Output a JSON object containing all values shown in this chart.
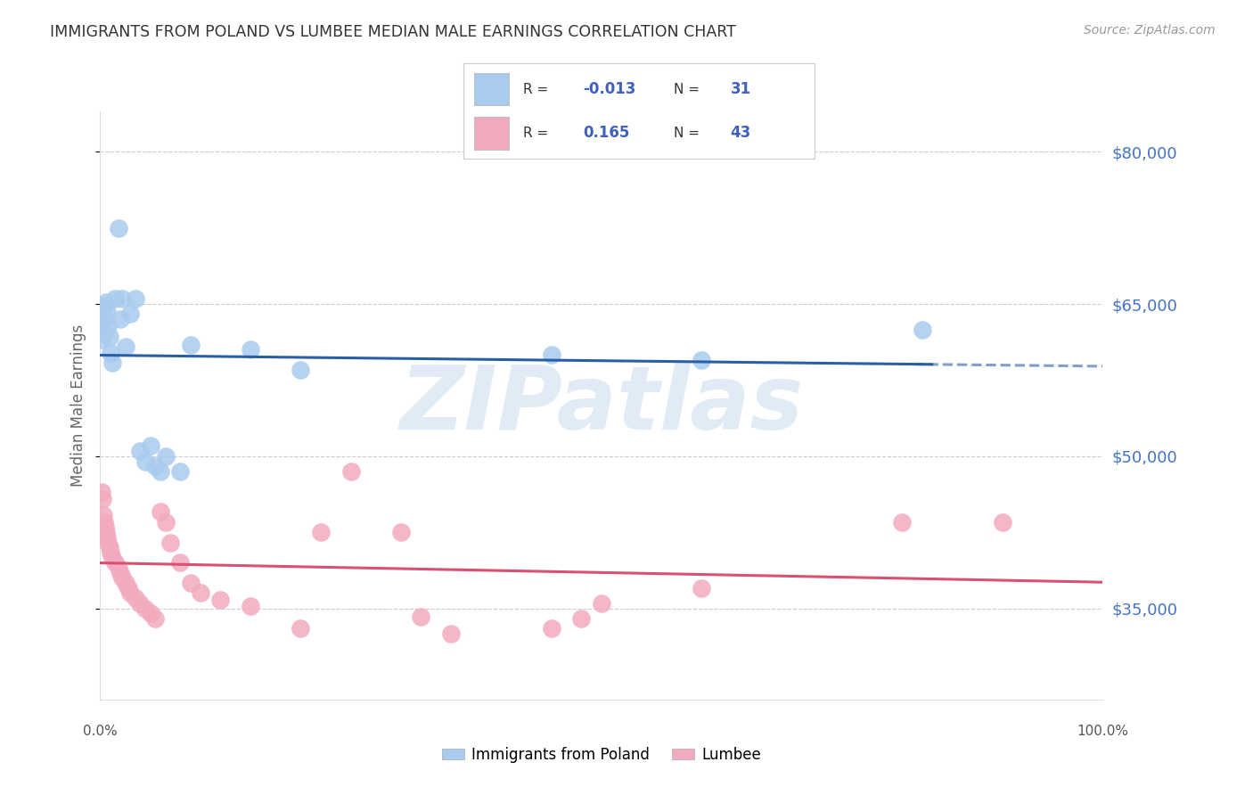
{
  "title": "IMMIGRANTS FROM POLAND VS LUMBEE MEDIAN MALE EARNINGS CORRELATION CHART",
  "source": "Source: ZipAtlas.com",
  "ylabel": "Median Male Earnings",
  "yticks": [
    35000,
    50000,
    65000,
    80000
  ],
  "ytick_labels": [
    "$35,000",
    "$50,000",
    "$65,000",
    "$80,000"
  ],
  "xlim": [
    0.0,
    1.0
  ],
  "ylim": [
    26000,
    84000
  ],
  "watermark": "ZIPatlas",
  "legend_r_blue": "-0.013",
  "legend_n_blue": "31",
  "legend_r_pink": "0.165",
  "legend_n_pink": "43",
  "legend_label_blue": "Immigrants from Poland",
  "legend_label_pink": "Lumbee",
  "blue_color": "#A8CBEE",
  "pink_color": "#F2ABBE",
  "blue_line_color": "#2B5FA5",
  "pink_line_color": "#D95070",
  "blue_scatter": [
    [
      0.001,
      61500
    ],
    [
      0.002,
      64800
    ],
    [
      0.003,
      63800
    ],
    [
      0.004,
      62200
    ],
    [
      0.005,
      63500
    ],
    [
      0.006,
      65200
    ],
    [
      0.007,
      64200
    ],
    [
      0.008,
      62800
    ],
    [
      0.009,
      61800
    ],
    [
      0.01,
      60200
    ],
    [
      0.012,
      59200
    ],
    [
      0.015,
      65500
    ],
    [
      0.018,
      72500
    ],
    [
      0.02,
      63500
    ],
    [
      0.022,
      65500
    ],
    [
      0.025,
      60800
    ],
    [
      0.03,
      64000
    ],
    [
      0.035,
      65500
    ],
    [
      0.04,
      50500
    ],
    [
      0.045,
      49500
    ],
    [
      0.05,
      51000
    ],
    [
      0.055,
      49000
    ],
    [
      0.06,
      48500
    ],
    [
      0.065,
      50000
    ],
    [
      0.08,
      48500
    ],
    [
      0.09,
      61000
    ],
    [
      0.15,
      60500
    ],
    [
      0.2,
      58500
    ],
    [
      0.45,
      60000
    ],
    [
      0.6,
      59500
    ],
    [
      0.82,
      62500
    ]
  ],
  "pink_scatter": [
    [
      0.001,
      46500
    ],
    [
      0.002,
      45800
    ],
    [
      0.003,
      44200
    ],
    [
      0.004,
      43500
    ],
    [
      0.005,
      43000
    ],
    [
      0.006,
      42500
    ],
    [
      0.007,
      42000
    ],
    [
      0.008,
      41500
    ],
    [
      0.009,
      41000
    ],
    [
      0.01,
      40500
    ],
    [
      0.012,
      40000
    ],
    [
      0.015,
      39500
    ],
    [
      0.018,
      39000
    ],
    [
      0.02,
      38500
    ],
    [
      0.022,
      38000
    ],
    [
      0.025,
      37500
    ],
    [
      0.028,
      37000
    ],
    [
      0.03,
      36500
    ],
    [
      0.035,
      36000
    ],
    [
      0.04,
      35500
    ],
    [
      0.045,
      35000
    ],
    [
      0.05,
      34500
    ],
    [
      0.055,
      34000
    ],
    [
      0.06,
      44500
    ],
    [
      0.065,
      43500
    ],
    [
      0.07,
      41500
    ],
    [
      0.08,
      39500
    ],
    [
      0.09,
      37500
    ],
    [
      0.1,
      36500
    ],
    [
      0.12,
      35800
    ],
    [
      0.15,
      35200
    ],
    [
      0.2,
      33000
    ],
    [
      0.22,
      42500
    ],
    [
      0.25,
      48500
    ],
    [
      0.3,
      42500
    ],
    [
      0.32,
      34200
    ],
    [
      0.35,
      32500
    ],
    [
      0.45,
      33000
    ],
    [
      0.48,
      34000
    ],
    [
      0.5,
      35500
    ],
    [
      0.6,
      37000
    ],
    [
      0.8,
      43500
    ],
    [
      0.9,
      43500
    ]
  ]
}
